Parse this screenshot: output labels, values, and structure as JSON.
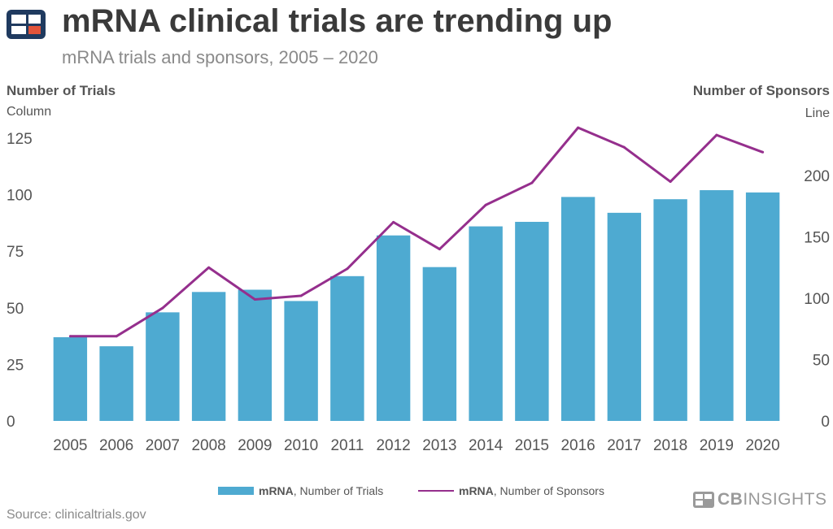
{
  "header": {
    "title": "mRNA clinical trials are trending up",
    "subtitle": "mRNA trials and sponsors, 2005 – 2020"
  },
  "axes": {
    "left_title": "Number of Trials",
    "left_sub": "Column",
    "right_title": "Number of Sponsors",
    "right_sub": "Line"
  },
  "legend": {
    "bar_bold": "mRNA",
    "bar_rest": ", Number of Trials",
    "line_bold": "mRNA",
    "line_rest": ", Number of Sponsors"
  },
  "footer": {
    "source": "Source: clinicaltrials.gov",
    "brand_bold": "CB",
    "brand_rest": "INSIGHTS"
  },
  "colors": {
    "bar": "#4eaad1",
    "line": "#952f8d",
    "logo_dark": "#1f3a5f",
    "logo_accent": "#e2543a"
  },
  "chart_data": {
    "type": "bar",
    "categories": [
      "2005",
      "2006",
      "2007",
      "2008",
      "2009",
      "2010",
      "2011",
      "2012",
      "2013",
      "2014",
      "2015",
      "2016",
      "2017",
      "2018",
      "2019",
      "2020"
    ],
    "series": [
      {
        "name": "Number of Trials",
        "type": "bar",
        "axis": "left",
        "values": [
          37,
          33,
          48,
          57,
          58,
          53,
          64,
          82,
          68,
          86,
          88,
          99,
          92,
          98,
          102,
          101
        ]
      },
      {
        "name": "Number of Sponsors",
        "type": "line",
        "axis": "right",
        "values": [
          69,
          69,
          92,
          125,
          99,
          102,
          124,
          162,
          140,
          176,
          194,
          239,
          223,
          195,
          233,
          219
        ]
      }
    ],
    "left_axis": {
      "ticks": [
        0,
        25,
        50,
        75,
        100,
        125
      ],
      "range": [
        0,
        125
      ]
    },
    "right_axis": {
      "ticks": [
        0,
        50,
        100,
        150,
        200
      ],
      "range": [
        0,
        200
      ]
    }
  }
}
